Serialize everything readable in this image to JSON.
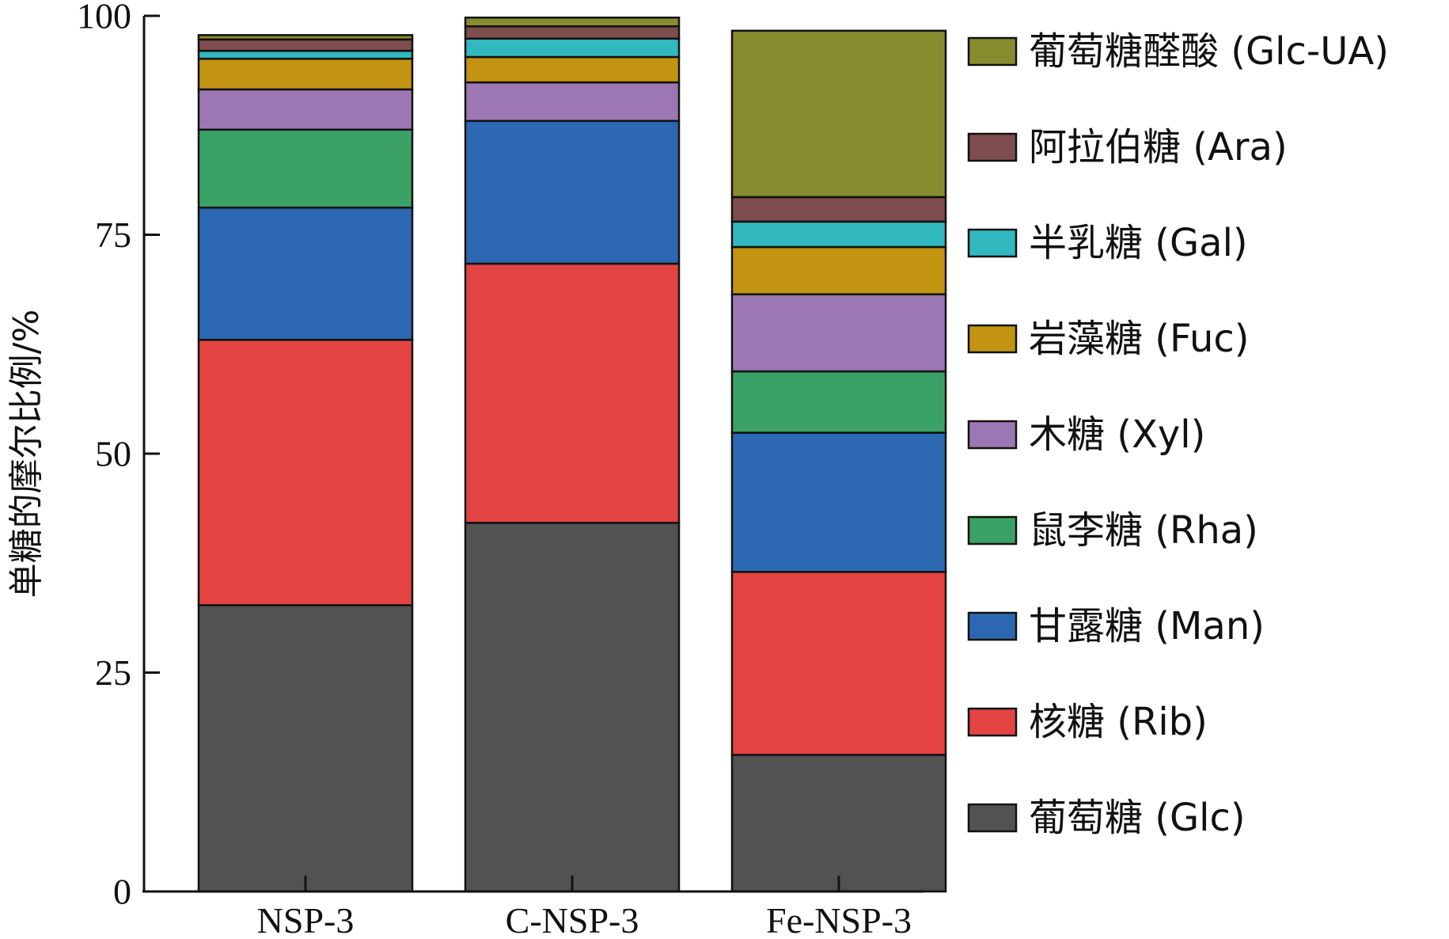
{
  "chart_data": {
    "type": "bar",
    "stacked": true,
    "categories": [
      "NSP-3",
      "C-NSP-3",
      "Fe-NSP-3"
    ],
    "ylabel": "单糖的摩尔比例/%",
    "xlabel": "",
    "ylim": [
      0,
      100
    ],
    "yticks": [
      0,
      25,
      50,
      75,
      100
    ],
    "legend_position": "right",
    "series": [
      {
        "name": "葡萄糖 (Glc)",
        "color": "#525252",
        "values": [
          32.7,
          42.1,
          15.6
        ]
      },
      {
        "name": "核糖 (Rib)",
        "color": "#e34441",
        "values": [
          30.3,
          29.6,
          20.9
        ]
      },
      {
        "name": "甘露糖 (Man)",
        "color": "#2c68b1",
        "values": [
          15.1,
          16.3,
          15.9
        ]
      },
      {
        "name": "鼠李糖 (Rha)",
        "color": "#3aa266",
        "values": [
          8.9,
          0.0,
          7.0
        ]
      },
      {
        "name": "木糖 (Xyl)",
        "color": "#9b78b4",
        "values": [
          4.6,
          4.4,
          8.8
        ]
      },
      {
        "name": "岩藻糖 (Fuc)",
        "color": "#c39412",
        "values": [
          3.5,
          2.9,
          5.4
        ]
      },
      {
        "name": "半乳糖 (Gal)",
        "color": "#31b9bf",
        "values": [
          0.9,
          2.1,
          2.9
        ]
      },
      {
        "name": "阿拉伯糖 (Ara)",
        "color": "#7f4d4d",
        "values": [
          1.3,
          1.4,
          2.8
        ]
      },
      {
        "name": "葡萄糖醛酸 (Glc-UA)",
        "color": "#898b2f",
        "values": [
          0.5,
          1.0,
          19.0
        ]
      }
    ]
  }
}
